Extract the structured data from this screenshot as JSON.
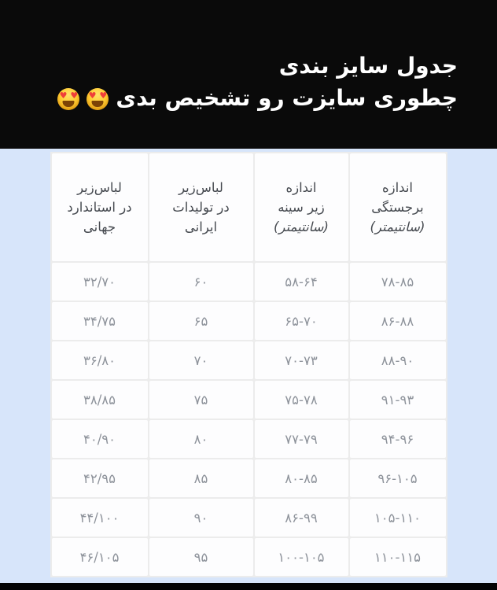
{
  "header": {
    "title_line1": "جدول سایز بندی",
    "title_line2": "چطوری سایزت رو تشخیص بدی",
    "emoji": {
      "name": "heart-eyes",
      "char": "😍",
      "count": 2
    }
  },
  "size_table": {
    "columns": [
      {
        "id": "bust",
        "lines": [
          "اندازه",
          "برجستگی",
          "(سانتیمتر)"
        ]
      },
      {
        "id": "underbust",
        "lines": [
          "اندازه",
          "زیر سینه",
          "(سانتیمتر)"
        ]
      },
      {
        "id": "iranian",
        "lines": [
          "لباس‌زیر",
          "در تولیدات",
          "ایرانی"
        ]
      },
      {
        "id": "international",
        "lines": [
          "لباس‌زیر",
          "در استاندارد",
          "جهانی"
        ]
      }
    ],
    "rows": [
      [
        "۷۸-۸۵",
        "۵۸-۶۴",
        "۶۰",
        "۳۲/۷۰"
      ],
      [
        "۸۶-۸۸",
        "۶۵-۷۰",
        "۶۵",
        "۳۴/۷۵"
      ],
      [
        "۸۸-۹۰",
        "۷۰-۷۳",
        "۷۰",
        "۳۶/۸۰"
      ],
      [
        "۹۱-۹۳",
        "۷۵-۷۸",
        "۷۵",
        "۳۸/۸۵"
      ],
      [
        "۹۴-۹۶",
        "۷۷-۷۹",
        "۸۰",
        "۴۰/۹۰"
      ],
      [
        "۹۶-۱۰۵",
        "۸۰-۸۵",
        "۸۵",
        "۴۲/۹۵"
      ],
      [
        "۱۰۵-۱۱۰",
        "۸۶-۹۹",
        "۹۰",
        "۴۴/۱۰۰"
      ],
      [
        "۱۱۰-۱۱۵",
        "۱۰۰-۱۰۵",
        "۹۵",
        "۴۶/۱۰۵"
      ]
    ]
  },
  "colors": {
    "header_bg": "#0a0a0a",
    "page_bg": "#d7e5fa",
    "cell_bg": "#fdfdfe",
    "grid_line": "#ececec",
    "header_text": "#ffffff",
    "column_header_text": "#45494f",
    "cell_text": "#8e939b",
    "footer_bg": "#040404"
  }
}
